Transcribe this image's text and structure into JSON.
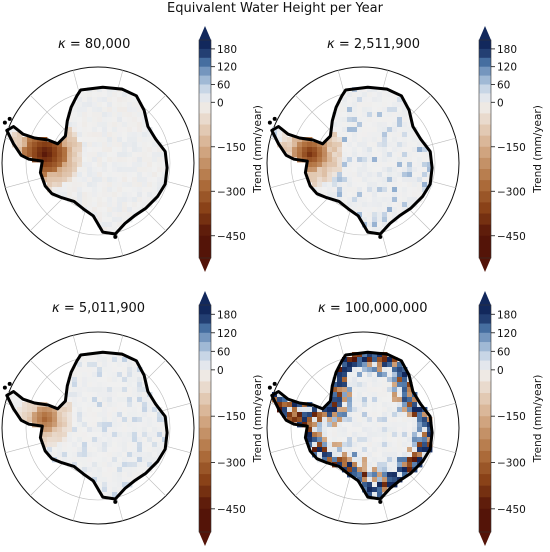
{
  "figure": {
    "title": "Equivalent Water Height per Year"
  },
  "chart_data": [
    {
      "type": "heatmap",
      "projection": "south-polar-stereographic",
      "title_symbol": "κ",
      "title_value": "80,000",
      "colorbar": {
        "label": "Trend (mm/year)",
        "ticks": [
          "180",
          "120",
          "60",
          "0",
          "−150",
          "−300",
          "−450"
        ],
        "range": [
          -525,
          210
        ],
        "extend": "both",
        "colormap": "diverging brown-white-blue"
      },
      "pattern": "strong negative trend concentrated along the Antarctic Peninsula and Amundsen Sea coast; near zero elsewhere",
      "min_trend": -450,
      "max_trend": 60
    },
    {
      "type": "heatmap",
      "projection": "south-polar-stereographic",
      "title_symbol": "κ",
      "title_value": "2,511,900",
      "colorbar": {
        "label": "Trend (mm/year)",
        "ticks": [
          "180",
          "120",
          "60",
          "0",
          "−150",
          "−300",
          "−450"
        ],
        "range": [
          -525,
          210
        ],
        "extend": "both",
        "colormap": "diverging brown-white-blue"
      },
      "pattern": "negative trend in West Antarctica with scattered blue pixels over East Antarctica",
      "min_trend": -450,
      "max_trend": 120
    },
    {
      "type": "heatmap",
      "projection": "south-polar-stereographic",
      "title_symbol": "κ",
      "title_value": "5,011,900",
      "colorbar": {
        "label": "Trend (mm/year)",
        "ticks": [
          "180",
          "120",
          "60",
          "0",
          "−150",
          "−300",
          "−450"
        ],
        "range": [
          -525,
          210
        ],
        "extend": "both",
        "colormap": "diverging brown-white-blue"
      },
      "pattern": "negative trend in the Amundsen Sea region, light blue speckle in the interior",
      "min_trend": -300,
      "max_trend": 120
    },
    {
      "type": "heatmap",
      "projection": "south-polar-stereographic",
      "title_symbol": "κ",
      "title_value": "100,000,000",
      "colorbar": {
        "label": "Trend (mm/year)",
        "ticks": [
          "180",
          "120",
          "60",
          "0",
          "−150",
          "−300",
          "−450"
        ],
        "range": [
          -525,
          210
        ],
        "extend": "both",
        "colormap": "diverging brown-white-blue"
      },
      "pattern": "noisy alternating dark blue and dark brown pixels along the coast; light speckle inland",
      "min_trend": -450,
      "max_trend": 180
    }
  ]
}
